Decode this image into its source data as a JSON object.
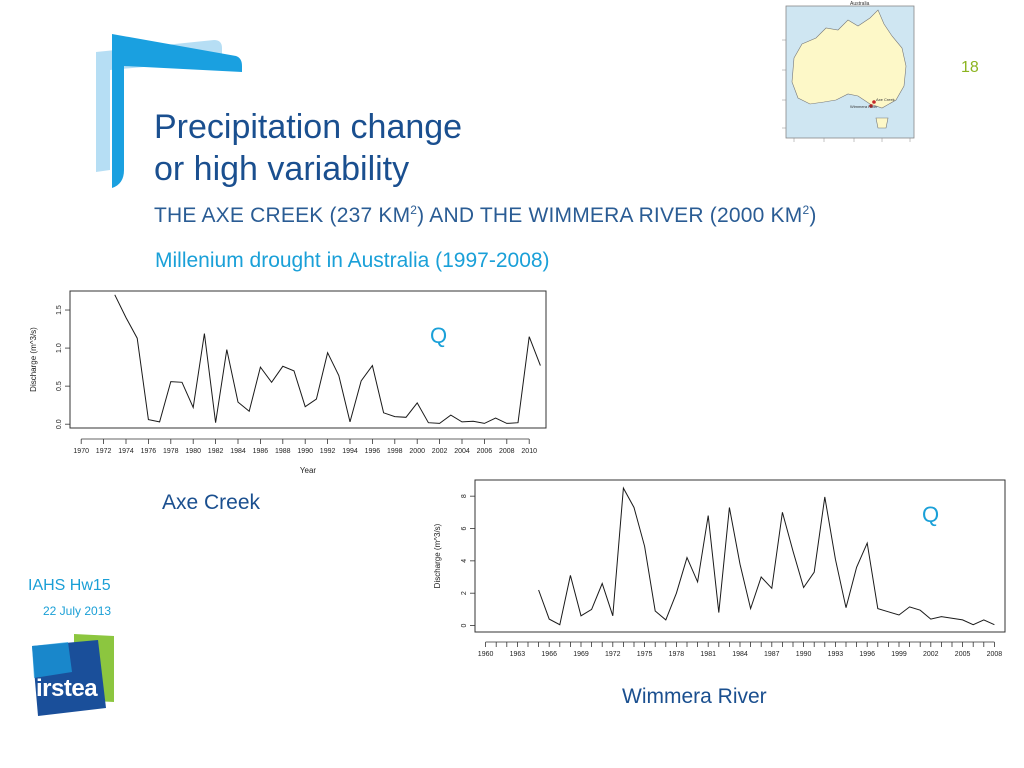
{
  "slide": {
    "page_number": "18",
    "title_line1": "Precipitation change",
    "title_line2": "or high variability",
    "subtitle_a": "THE AXE CREEK (237 KM",
    "subtitle_b": ") AND THE WIMMERA RIVER (2000 KM",
    "subtitle_c": ")",
    "superscript": "2",
    "drought_label": "Millenium drought in Australia (1997-2008)",
    "conference": "IAHS Hw15",
    "date": "22 July 2013",
    "logo_text": "irstea",
    "caption_axe": "Axe Creek",
    "caption_wimmera": "Wimmera River",
    "colors": {
      "title": "#1a4f8f",
      "accent_blue": "#1aa0d8",
      "green": "#8cb420"
    }
  },
  "map": {
    "title": "Australia",
    "label_axe": "Axe Creek",
    "label_wimmera": "Wimmera River"
  },
  "chart_data": [
    {
      "type": "line",
      "name": "axe-creek",
      "ylabel": "Discharge (m^3/s)",
      "xlabel": "Year",
      "annotation": "Q",
      "xlim": [
        1969,
        2011.5
      ],
      "ylim": [
        -0.05,
        1.75
      ],
      "yticks": [
        0.0,
        0.5,
        1.0,
        1.5
      ],
      "ytick_labels": [
        "0.0",
        "0.5",
        "1.0",
        "1.5"
      ],
      "xticks": [
        1970,
        1972,
        1974,
        1976,
        1978,
        1980,
        1982,
        1984,
        1986,
        1988,
        1990,
        1992,
        1994,
        1996,
        1998,
        2000,
        2002,
        2004,
        2006,
        2008,
        2010
      ],
      "xtick_labels": [
        "1970",
        "1972",
        "1974",
        "1976",
        "1978",
        "1980",
        "1982",
        "1984",
        "1986",
        "1988",
        "1990",
        "1992",
        "1994",
        "1996",
        "1998",
        "2000",
        "2002",
        "2004",
        "2006",
        "2008",
        "2010"
      ],
      "x": [
        1973,
        1974,
        1975,
        1976,
        1977,
        1978,
        1979,
        1980,
        1981,
        1982,
        1983,
        1984,
        1985,
        1986,
        1987,
        1988,
        1989,
        1990,
        1991,
        1992,
        1993,
        1994,
        1995,
        1996,
        1997,
        1998,
        1999,
        2000,
        2001,
        2002,
        2003,
        2004,
        2005,
        2006,
        2007,
        2008,
        2009,
        2010,
        2011
      ],
      "y": [
        1.7,
        1.4,
        1.13,
        0.06,
        0.03,
        0.56,
        0.55,
        0.22,
        1.19,
        0.02,
        0.98,
        0.29,
        0.17,
        0.75,
        0.55,
        0.76,
        0.7,
        0.23,
        0.33,
        0.94,
        0.64,
        0.03,
        0.57,
        0.77,
        0.15,
        0.1,
        0.09,
        0.28,
        0.02,
        0.01,
        0.12,
        0.03,
        0.04,
        0.01,
        0.08,
        0.01,
        0.02,
        1.15,
        0.77
      ]
    },
    {
      "type": "line",
      "name": "wimmera-river",
      "ylabel": "Discharge (m^3/s)",
      "xlabel": "",
      "annotation": "Q",
      "xlim": [
        1959,
        2009
      ],
      "ylim": [
        -0.4,
        9
      ],
      "yticks": [
        0,
        2,
        4,
        6,
        8
      ],
      "ytick_labels": [
        "0",
        "2",
        "4",
        "6",
        "8"
      ],
      "xticks": [
        1960,
        1961,
        1962,
        1963,
        1964,
        1965,
        1966,
        1967,
        1968,
        1969,
        1970,
        1971,
        1972,
        1973,
        1974,
        1975,
        1976,
        1977,
        1978,
        1979,
        1980,
        1981,
        1982,
        1983,
        1984,
        1985,
        1986,
        1987,
        1988,
        1989,
        1990,
        1991,
        1992,
        1993,
        1994,
        1995,
        1996,
        1997,
        1998,
        1999,
        2000,
        2001,
        2002,
        2003,
        2004,
        2005,
        2006,
        2007,
        2008
      ],
      "xtick_labels": [
        "1960",
        "",
        "",
        "1963",
        "",
        "",
        "1966",
        "",
        "",
        "1969",
        "",
        "",
        "1972",
        "",
        "",
        "1975",
        "",
        "",
        "1978",
        "",
        "",
        "1981",
        "",
        "",
        "1984",
        "",
        "",
        "1987",
        "",
        "",
        "1990",
        "",
        "",
        "1993",
        "",
        "",
        "1996",
        "",
        "",
        "1999",
        "",
        "",
        "2002",
        "",
        "",
        "2005",
        "",
        "",
        "2008"
      ],
      "x": [
        1965,
        1966,
        1967,
        1968,
        1969,
        1970,
        1971,
        1972,
        1973,
        1974,
        1975,
        1976,
        1977,
        1978,
        1979,
        1980,
        1981,
        1982,
        1983,
        1984,
        1985,
        1986,
        1987,
        1988,
        1989,
        1990,
        1991,
        1992,
        1993,
        1994,
        1995,
        1996,
        1997,
        1998,
        1999,
        2000,
        2001,
        2002,
        2003,
        2004,
        2005,
        2006,
        2007,
        2008
      ],
      "y": [
        2.2,
        0.4,
        0.05,
        3.1,
        0.6,
        1.0,
        2.6,
        0.6,
        8.5,
        7.3,
        4.9,
        0.9,
        0.35,
        2.0,
        4.2,
        2.7,
        6.8,
        0.8,
        7.3,
        3.8,
        1.05,
        3.0,
        2.3,
        7.0,
        4.6,
        2.35,
        3.3,
        7.95,
        4.1,
        1.1,
        3.6,
        5.1,
        1.05,
        0.85,
        0.65,
        1.15,
        0.95,
        0.4,
        0.55,
        0.45,
        0.35,
        0.05,
        0.35,
        0.05
      ]
    }
  ]
}
